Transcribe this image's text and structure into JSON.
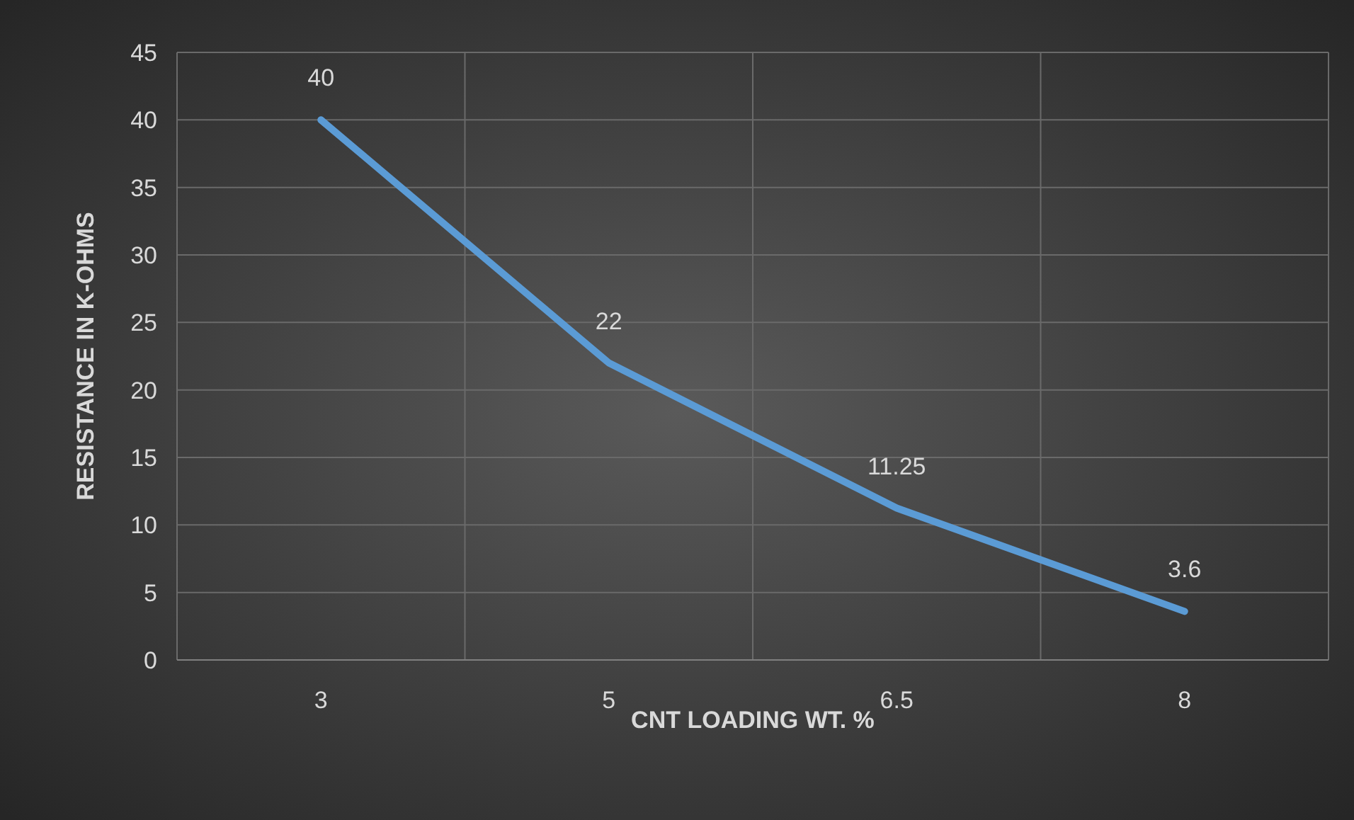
{
  "chart_data": {
    "type": "line",
    "xlabel": "CNT LOADING WT. %",
    "ylabel": "RESISTANCE IN K-OHMS",
    "categories": [
      "3",
      "5",
      "6.5",
      "8"
    ],
    "series": [
      {
        "color": "#5b9bd5",
        "values": [
          40,
          22,
          11.25,
          3.6
        ]
      }
    ],
    "ylim": [
      0,
      45
    ],
    "yticks": [
      0,
      5,
      10,
      15,
      20,
      25,
      30,
      35,
      40,
      45
    ],
    "grid": true,
    "data_labels": true,
    "marker": "none",
    "line_style": "solid"
  }
}
